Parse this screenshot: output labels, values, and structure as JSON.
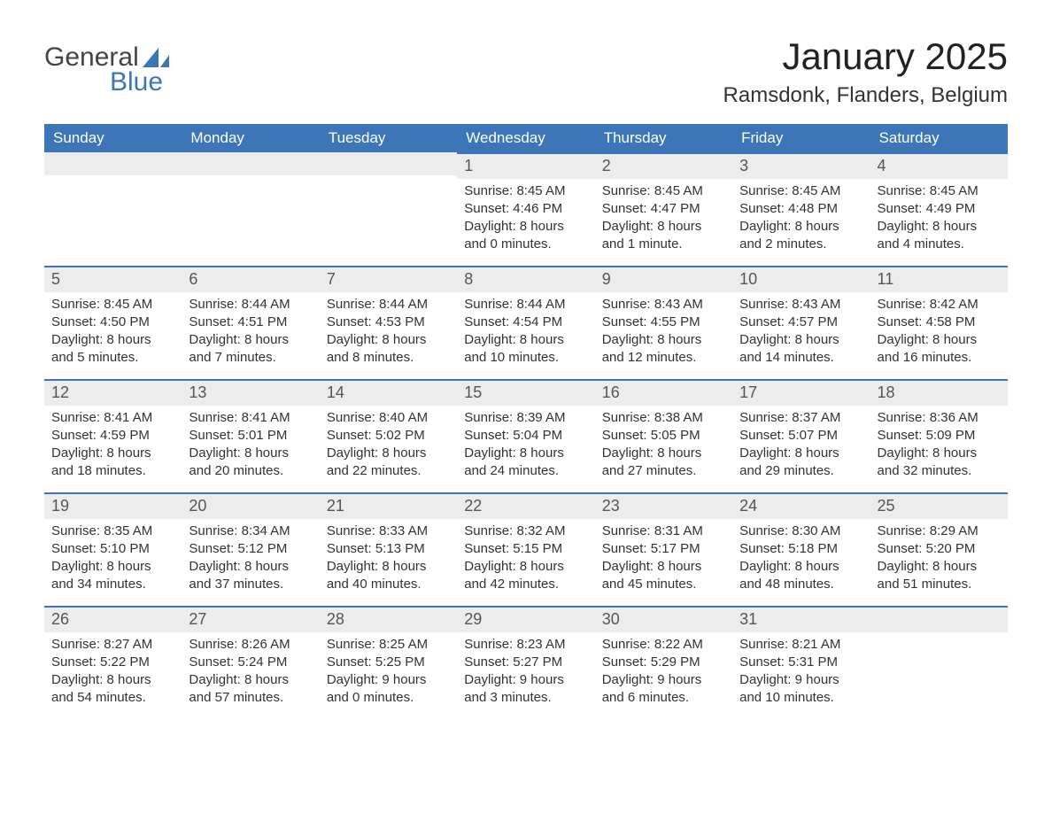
{
  "brand": {
    "word1": "General",
    "word2": "Blue"
  },
  "title": "January 2025",
  "location": "Ramsdonk, Flanders, Belgium",
  "colors": {
    "header_bg": "#3d76b8",
    "header_text": "#ffffff",
    "daybar_bg": "#ececec",
    "daybar_border": "#3d76b8",
    "body_bg": "#ffffff",
    "text": "#333333"
  },
  "day_labels": [
    "Sunday",
    "Monday",
    "Tuesday",
    "Wednesday",
    "Thursday",
    "Friday",
    "Saturday"
  ],
  "field_labels": {
    "sunrise": "Sunrise:",
    "sunset": "Sunset:",
    "daylight": "Daylight:"
  },
  "weeks": [
    [
      null,
      null,
      null,
      {
        "n": "1",
        "sunrise": "8:45 AM",
        "sunset": "4:46 PM",
        "day_l1": "8 hours",
        "day_l2": "and 0 minutes."
      },
      {
        "n": "2",
        "sunrise": "8:45 AM",
        "sunset": "4:47 PM",
        "day_l1": "8 hours",
        "day_l2": "and 1 minute."
      },
      {
        "n": "3",
        "sunrise": "8:45 AM",
        "sunset": "4:48 PM",
        "day_l1": "8 hours",
        "day_l2": "and 2 minutes."
      },
      {
        "n": "4",
        "sunrise": "8:45 AM",
        "sunset": "4:49 PM",
        "day_l1": "8 hours",
        "day_l2": "and 4 minutes."
      }
    ],
    [
      {
        "n": "5",
        "sunrise": "8:45 AM",
        "sunset": "4:50 PM",
        "day_l1": "8 hours",
        "day_l2": "and 5 minutes."
      },
      {
        "n": "6",
        "sunrise": "8:44 AM",
        "sunset": "4:51 PM",
        "day_l1": "8 hours",
        "day_l2": "and 7 minutes."
      },
      {
        "n": "7",
        "sunrise": "8:44 AM",
        "sunset": "4:53 PM",
        "day_l1": "8 hours",
        "day_l2": "and 8 minutes."
      },
      {
        "n": "8",
        "sunrise": "8:44 AM",
        "sunset": "4:54 PM",
        "day_l1": "8 hours",
        "day_l2": "and 10 minutes."
      },
      {
        "n": "9",
        "sunrise": "8:43 AM",
        "sunset": "4:55 PM",
        "day_l1": "8 hours",
        "day_l2": "and 12 minutes."
      },
      {
        "n": "10",
        "sunrise": "8:43 AM",
        "sunset": "4:57 PM",
        "day_l1": "8 hours",
        "day_l2": "and 14 minutes."
      },
      {
        "n": "11",
        "sunrise": "8:42 AM",
        "sunset": "4:58 PM",
        "day_l1": "8 hours",
        "day_l2": "and 16 minutes."
      }
    ],
    [
      {
        "n": "12",
        "sunrise": "8:41 AM",
        "sunset": "4:59 PM",
        "day_l1": "8 hours",
        "day_l2": "and 18 minutes."
      },
      {
        "n": "13",
        "sunrise": "8:41 AM",
        "sunset": "5:01 PM",
        "day_l1": "8 hours",
        "day_l2": "and 20 minutes."
      },
      {
        "n": "14",
        "sunrise": "8:40 AM",
        "sunset": "5:02 PM",
        "day_l1": "8 hours",
        "day_l2": "and 22 minutes."
      },
      {
        "n": "15",
        "sunrise": "8:39 AM",
        "sunset": "5:04 PM",
        "day_l1": "8 hours",
        "day_l2": "and 24 minutes."
      },
      {
        "n": "16",
        "sunrise": "8:38 AM",
        "sunset": "5:05 PM",
        "day_l1": "8 hours",
        "day_l2": "and 27 minutes."
      },
      {
        "n": "17",
        "sunrise": "8:37 AM",
        "sunset": "5:07 PM",
        "day_l1": "8 hours",
        "day_l2": "and 29 minutes."
      },
      {
        "n": "18",
        "sunrise": "8:36 AM",
        "sunset": "5:09 PM",
        "day_l1": "8 hours",
        "day_l2": "and 32 minutes."
      }
    ],
    [
      {
        "n": "19",
        "sunrise": "8:35 AM",
        "sunset": "5:10 PM",
        "day_l1": "8 hours",
        "day_l2": "and 34 minutes."
      },
      {
        "n": "20",
        "sunrise": "8:34 AM",
        "sunset": "5:12 PM",
        "day_l1": "8 hours",
        "day_l2": "and 37 minutes."
      },
      {
        "n": "21",
        "sunrise": "8:33 AM",
        "sunset": "5:13 PM",
        "day_l1": "8 hours",
        "day_l2": "and 40 minutes."
      },
      {
        "n": "22",
        "sunrise": "8:32 AM",
        "sunset": "5:15 PM",
        "day_l1": "8 hours",
        "day_l2": "and 42 minutes."
      },
      {
        "n": "23",
        "sunrise": "8:31 AM",
        "sunset": "5:17 PM",
        "day_l1": "8 hours",
        "day_l2": "and 45 minutes."
      },
      {
        "n": "24",
        "sunrise": "8:30 AM",
        "sunset": "5:18 PM",
        "day_l1": "8 hours",
        "day_l2": "and 48 minutes."
      },
      {
        "n": "25",
        "sunrise": "8:29 AM",
        "sunset": "5:20 PM",
        "day_l1": "8 hours",
        "day_l2": "and 51 minutes."
      }
    ],
    [
      {
        "n": "26",
        "sunrise": "8:27 AM",
        "sunset": "5:22 PM",
        "day_l1": "8 hours",
        "day_l2": "and 54 minutes."
      },
      {
        "n": "27",
        "sunrise": "8:26 AM",
        "sunset": "5:24 PM",
        "day_l1": "8 hours",
        "day_l2": "and 57 minutes."
      },
      {
        "n": "28",
        "sunrise": "8:25 AM",
        "sunset": "5:25 PM",
        "day_l1": "9 hours",
        "day_l2": "and 0 minutes."
      },
      {
        "n": "29",
        "sunrise": "8:23 AM",
        "sunset": "5:27 PM",
        "day_l1": "9 hours",
        "day_l2": "and 3 minutes."
      },
      {
        "n": "30",
        "sunrise": "8:22 AM",
        "sunset": "5:29 PM",
        "day_l1": "9 hours",
        "day_l2": "and 6 minutes."
      },
      {
        "n": "31",
        "sunrise": "8:21 AM",
        "sunset": "5:31 PM",
        "day_l1": "9 hours",
        "day_l2": "and 10 minutes."
      },
      null
    ]
  ]
}
